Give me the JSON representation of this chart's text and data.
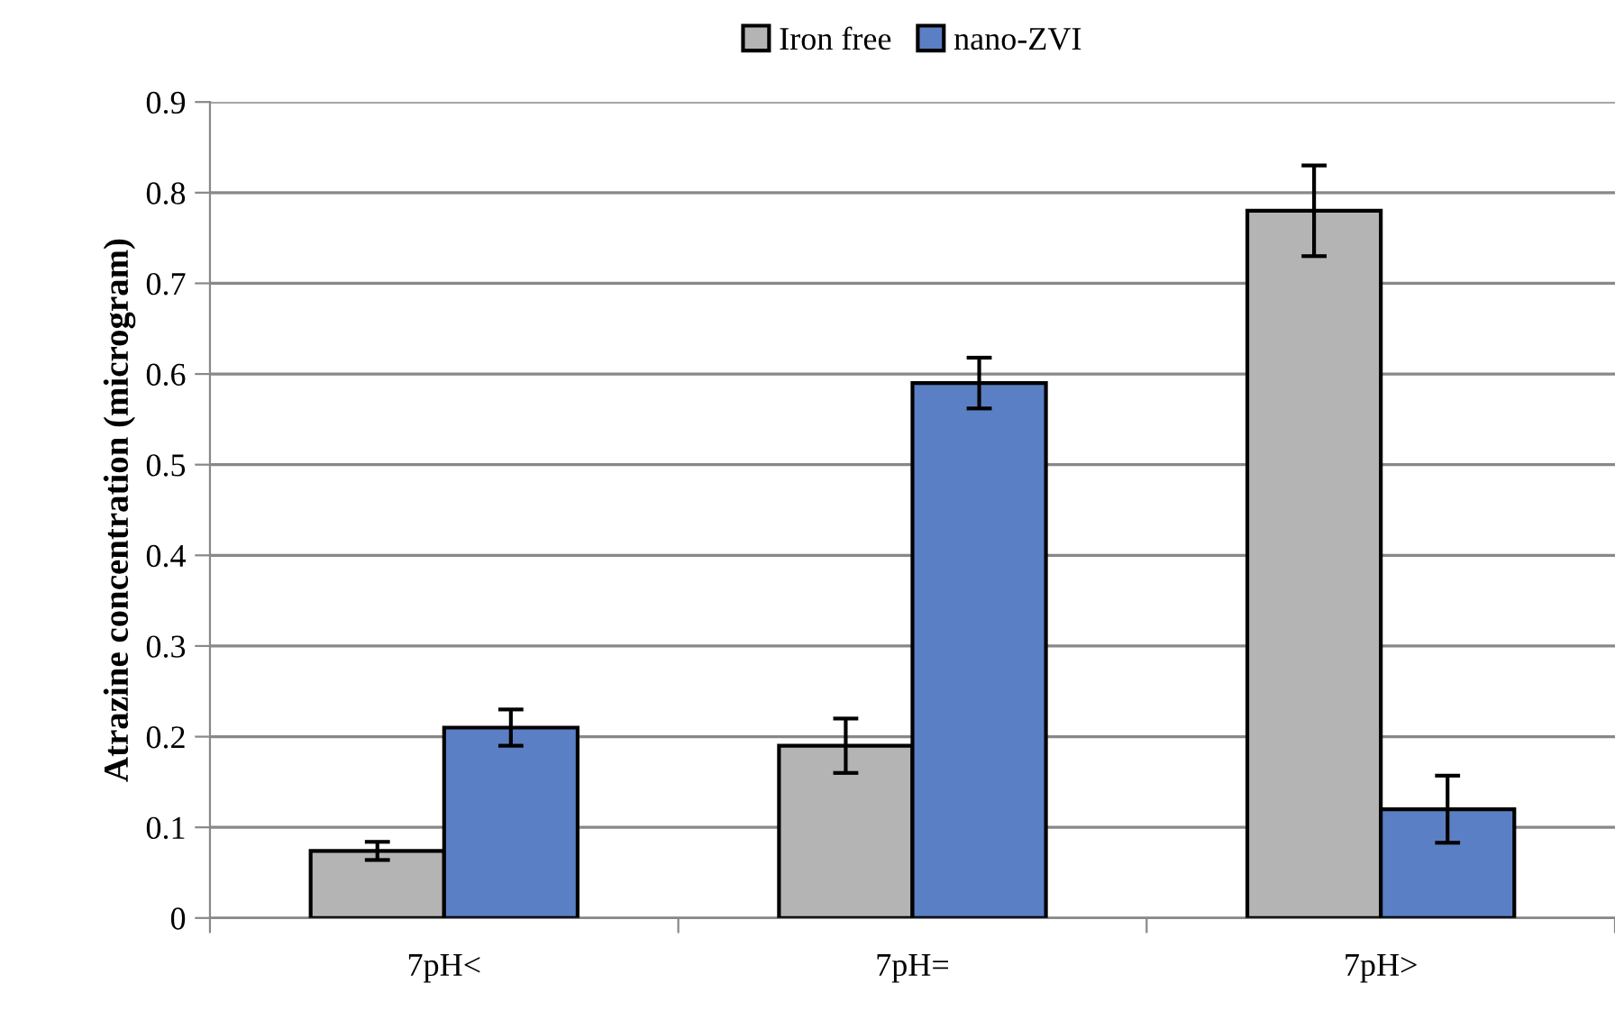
{
  "chart_data": {
    "type": "bar",
    "ylabel": "Atrazine concentration (microgram)",
    "categories": [
      "7pH<",
      "7pH=",
      "7pH>"
    ],
    "series": [
      {
        "name": "Iron free",
        "color": "#b4b4b4",
        "values": [
          0.074,
          0.19,
          0.78
        ],
        "errors": [
          0.01,
          0.03,
          0.05
        ]
      },
      {
        "name": "nano-ZVI",
        "color": "#5b7fc4",
        "values": [
          0.21,
          0.59,
          0.12
        ],
        "errors": [
          0.02,
          0.028,
          0.037
        ]
      }
    ],
    "ylim": [
      0,
      0.9
    ],
    "yticks": [
      0,
      0.1,
      0.2,
      0.3,
      0.4,
      0.5,
      0.6,
      0.7,
      0.8,
      0.9
    ],
    "grid": "y",
    "legend": "top"
  }
}
